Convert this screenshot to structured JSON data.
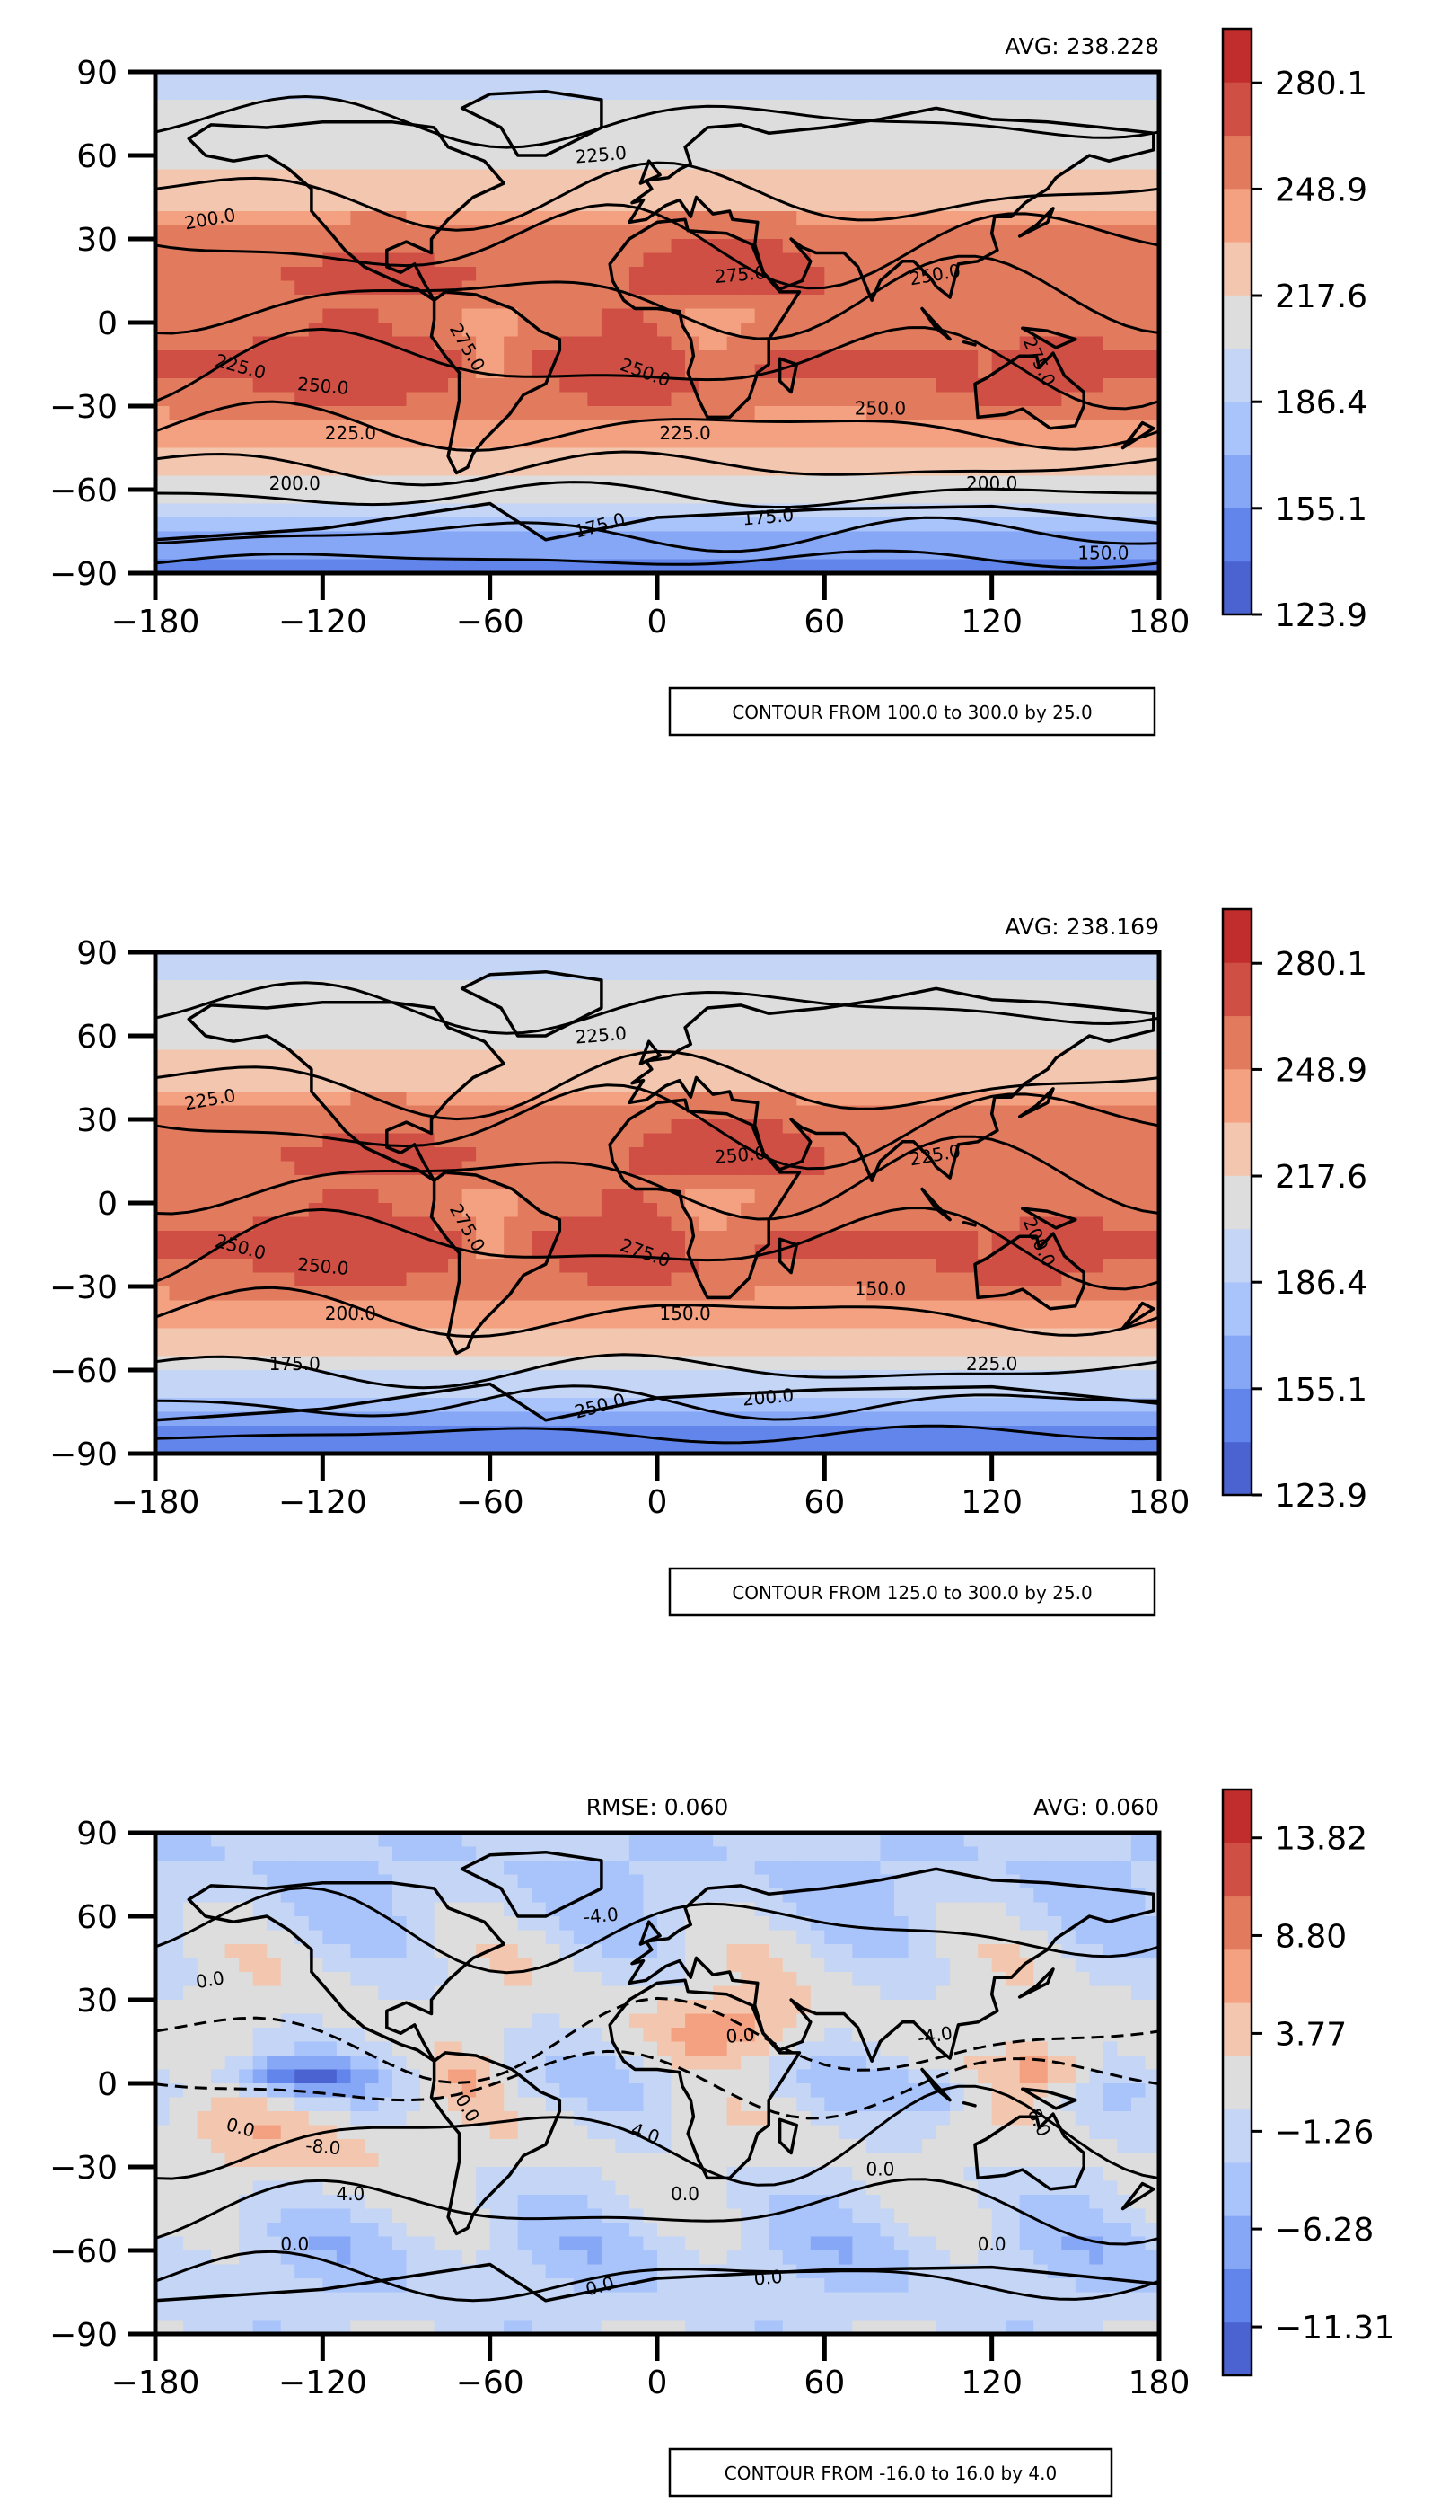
{
  "colors": {
    "map_palette": [
      "#4a63d1",
      "#6185ea",
      "#86a6f6",
      "#a9c3fb",
      "#c4d5f5",
      "#dddddd",
      "#f2c6af",
      "#f4a181",
      "#e27a5e",
      "#cf4f44",
      "#c12d2d"
    ],
    "land_outline": "#000000",
    "ocean_cold": "#4a63d1",
    "ocean_warm": "#c12d2d"
  },
  "panels": [
    {
      "avg_label": "AVG: 238.228",
      "rmse_label": "",
      "contour_note": "CONTOUR FROM 100.0 to 300.0 by 25.0",
      "colorbar_ticks": [
        "280.1",
        "248.9",
        "217.6",
        "186.4",
        "155.1",
        "123.9"
      ],
      "contour_labels": [
        "200.0",
        "225.0",
        "250.0",
        "275.0",
        "225.0",
        "250.0",
        "275.0",
        "250.0",
        "275.0",
        "225.0",
        "225.0",
        "250.0",
        "200.0",
        "200.0",
        "175.0",
        "175.0",
        "150.0"
      ]
    },
    {
      "avg_label": "AVG: 238.169",
      "rmse_label": "",
      "contour_note": "CONTOUR FROM 125.0 to 300.0 by 25.0",
      "colorbar_ticks": [
        "280.1",
        "248.9",
        "217.6",
        "186.4",
        "155.1",
        "123.9"
      ],
      "contour_labels": [
        "225.0",
        "250.0",
        "250.0",
        "275.0",
        "225.0",
        "275.0",
        "250.0",
        "225.0",
        "200.0",
        "200.0",
        "150.0",
        "150.0",
        "175.0",
        "225.0",
        "250.0",
        "200.0"
      ]
    },
    {
      "avg_label": "AVG: 0.060",
      "rmse_label": "RMSE: 0.060",
      "contour_note": "CONTOUR FROM -16.0 to 16.0 by 4.0",
      "colorbar_ticks": [
        "13.82",
        "8.80",
        "3.77",
        "−1.26",
        "−6.28",
        "−11.31"
      ],
      "contour_labels": [
        "0.0",
        "0.0",
        "-8.0",
        "0.0",
        "-4.0",
        "4.0",
        "0.0",
        "-4.0",
        "8.0",
        "4.0",
        "0.0",
        "0.0",
        "0.0",
        "0.0",
        "0.0",
        "0.0"
      ]
    }
  ],
  "chart_data": [
    {
      "type": "heatmap",
      "title": "",
      "annotation_top_right": "AVG: 238.228",
      "xlabel": "",
      "ylabel": "",
      "xlim": [
        -180,
        180
      ],
      "ylim": [
        -90,
        90
      ],
      "x_ticks": [
        -180,
        -120,
        -60,
        0,
        60,
        120,
        180
      ],
      "y_ticks": [
        90,
        60,
        30,
        0,
        -30,
        -60,
        -90
      ],
      "x_tick_labels": [
        "−180",
        "−120",
        "−60",
        "0",
        "60",
        "120",
        "180"
      ],
      "y_tick_labels": [
        "90",
        "60",
        "30",
        "0",
        "−30",
        "−60",
        "−90"
      ],
      "colorbar_range": [
        123.9,
        296.0
      ],
      "colorbar_ticks": [
        280.1,
        248.9,
        217.6,
        186.4,
        155.1,
        123.9
      ],
      "contour_levels": {
        "from": 100.0,
        "to": 300.0,
        "by": 25.0
      },
      "zonal_profile": {
        "lat": [
          90,
          75,
          60,
          45,
          30,
          15,
          0,
          -15,
          -30,
          -45,
          -60,
          -75,
          -90
        ],
        "value": [
          190,
          205,
          212,
          228,
          255,
          262,
          250,
          268,
          252,
          232,
          208,
          175,
          140
        ]
      }
    },
    {
      "type": "heatmap",
      "title": "",
      "annotation_top_right": "AVG: 238.169",
      "xlabel": "",
      "ylabel": "",
      "xlim": [
        -180,
        180
      ],
      "ylim": [
        -90,
        90
      ],
      "x_ticks": [
        -180,
        -120,
        -60,
        0,
        60,
        120,
        180
      ],
      "y_ticks": [
        90,
        60,
        30,
        0,
        -30,
        -60,
        -90
      ],
      "x_tick_labels": [
        "−180",
        "−120",
        "−60",
        "0",
        "60",
        "120",
        "180"
      ],
      "y_tick_labels": [
        "90",
        "60",
        "30",
        "0",
        "−30",
        "−60",
        "−90"
      ],
      "colorbar_range": [
        123.9,
        296.0
      ],
      "colorbar_ticks": [
        280.1,
        248.9,
        217.6,
        186.4,
        155.1,
        123.9
      ],
      "contour_levels": {
        "from": 125.0,
        "to": 300.0,
        "by": 25.0
      },
      "zonal_profile": {
        "lat": [
          90,
          75,
          60,
          45,
          30,
          15,
          0,
          -15,
          -30,
          -45,
          -60,
          -75,
          -90
        ],
        "value": [
          192,
          205,
          212,
          228,
          255,
          262,
          250,
          268,
          252,
          232,
          208,
          172,
          135
        ]
      }
    },
    {
      "type": "heatmap",
      "title": "",
      "annotation_top_center": "RMSE: 0.060",
      "annotation_top_right": "AVG: 0.060",
      "xlabel": "",
      "ylabel": "",
      "xlim": [
        -180,
        180
      ],
      "ylim": [
        -90,
        90
      ],
      "x_ticks": [
        -180,
        -120,
        -60,
        0,
        60,
        120,
        180
      ],
      "y_ticks": [
        90,
        60,
        30,
        0,
        -30,
        -60,
        -90
      ],
      "x_tick_labels": [
        "−180",
        "−120",
        "−60",
        "0",
        "60",
        "120",
        "180"
      ],
      "y_tick_labels": [
        "90",
        "60",
        "30",
        "0",
        "−30",
        "−60",
        "−90"
      ],
      "colorbar_range": [
        -13.8,
        16.3
      ],
      "colorbar_ticks": [
        13.82,
        8.8,
        3.77,
        -1.26,
        -6.28,
        -11.31
      ],
      "contour_levels": {
        "from": -16.0,
        "to": 16.0,
        "by": 4.0
      },
      "zonal_profile": {
        "lat": [
          90,
          75,
          60,
          45,
          30,
          15,
          0,
          -15,
          -30,
          -45,
          -60,
          -75,
          -90
        ],
        "value": [
          -2,
          -3,
          -2,
          0,
          1,
          0,
          -2,
          1,
          0,
          -1,
          -3,
          -2,
          -1
        ]
      }
    }
  ]
}
